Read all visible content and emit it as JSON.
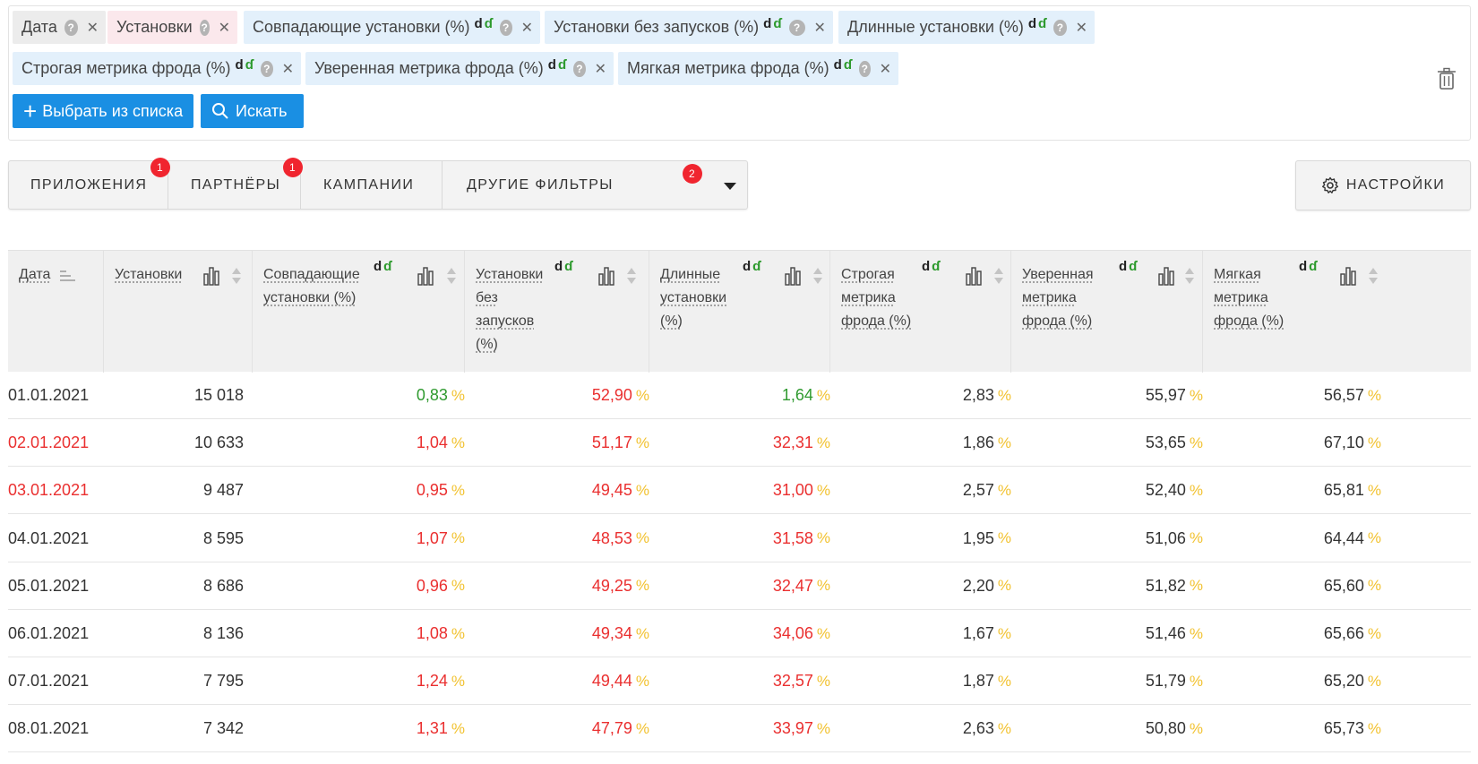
{
  "chips": [
    {
      "label": "Дата",
      "style": "gray",
      "dd": false
    },
    {
      "label": "Установки",
      "style": "pink",
      "dd": false
    },
    {
      "label": "Совпадающие установки (%)",
      "style": "blue",
      "dd": true
    },
    {
      "label": "Установки без запусков (%)",
      "style": "blue",
      "dd": true
    },
    {
      "label": "Длинные установки (%)",
      "style": "blue",
      "dd": true
    },
    {
      "label": "Строгая метрика фрода (%)",
      "style": "blue",
      "dd": true
    },
    {
      "label": "Уверенная метрика фрода (%)",
      "style": "blue",
      "dd": true
    },
    {
      "label": "Мягкая метрика фрода (%)",
      "style": "blue",
      "dd": true
    }
  ],
  "chip_help": "?",
  "chip_remove": "✕",
  "dd_mark_a": "d",
  "dd_mark_b": "ɗ",
  "buttons": {
    "select_from_list": "Выбрать из списка",
    "search": "Искать"
  },
  "filter_tabs": [
    {
      "label": "ПРИЛОЖЕНИЯ",
      "badge": "1"
    },
    {
      "label": "ПАРТНЁРЫ",
      "badge": "1"
    },
    {
      "label": "КАМПАНИИ",
      "badge": ""
    },
    {
      "label": "ДРУГИЕ ФИЛЬТРЫ",
      "badge": "2"
    }
  ],
  "settings_label": "НАСТРОЙКИ",
  "columns": [
    {
      "label": "Дата"
    },
    {
      "label": "Установки"
    },
    {
      "label": "Совпадающие установки (%)"
    },
    {
      "label": "Установки без запусков (%)"
    },
    {
      "label": "Длинные установки (%)"
    },
    {
      "label": "Строгая метрика фрода (%)"
    },
    {
      "label": "Уверенная метрика фрода (%)"
    },
    {
      "label": "Мягкая метрика фрода (%)"
    }
  ],
  "percent_sign": "%",
  "colors": {
    "red": "#ea2f2f",
    "green": "#2f9a2f",
    "dark": "#333333",
    "accent_blue": "#1a8fe3",
    "percent_yellow": "#f2c230",
    "badge_red": "#f0252f"
  },
  "rows": [
    {
      "date": "01.01.2021",
      "date_color": "dark",
      "installs": "15 018",
      "vals": [
        [
          "0,83",
          "green"
        ],
        [
          "52,90",
          "red"
        ],
        [
          "1,64",
          "green"
        ],
        [
          "2,83",
          "dark"
        ],
        [
          "55,97",
          "dark"
        ],
        [
          "56,57",
          "dark"
        ]
      ]
    },
    {
      "date": "02.01.2021",
      "date_color": "red",
      "installs": "10 633",
      "vals": [
        [
          "1,04",
          "red"
        ],
        [
          "51,17",
          "red"
        ],
        [
          "32,31",
          "red"
        ],
        [
          "1,86",
          "dark"
        ],
        [
          "53,65",
          "dark"
        ],
        [
          "67,10",
          "dark"
        ]
      ]
    },
    {
      "date": "03.01.2021",
      "date_color": "red",
      "installs": "9 487",
      "vals": [
        [
          "0,95",
          "red"
        ],
        [
          "49,45",
          "red"
        ],
        [
          "31,00",
          "red"
        ],
        [
          "2,57",
          "dark"
        ],
        [
          "52,40",
          "dark"
        ],
        [
          "65,81",
          "dark"
        ]
      ]
    },
    {
      "date": "04.01.2021",
      "date_color": "dark",
      "installs": "8 595",
      "vals": [
        [
          "1,07",
          "red"
        ],
        [
          "48,53",
          "red"
        ],
        [
          "31,58",
          "red"
        ],
        [
          "1,95",
          "dark"
        ],
        [
          "51,06",
          "dark"
        ],
        [
          "64,44",
          "dark"
        ]
      ]
    },
    {
      "date": "05.01.2021",
      "date_color": "dark",
      "installs": "8 686",
      "vals": [
        [
          "0,96",
          "red"
        ],
        [
          "49,25",
          "red"
        ],
        [
          "32,47",
          "red"
        ],
        [
          "2,20",
          "dark"
        ],
        [
          "51,82",
          "dark"
        ],
        [
          "65,60",
          "dark"
        ]
      ]
    },
    {
      "date": "06.01.2021",
      "date_color": "dark",
      "installs": "8 136",
      "vals": [
        [
          "1,08",
          "red"
        ],
        [
          "49,34",
          "red"
        ],
        [
          "34,06",
          "red"
        ],
        [
          "1,67",
          "dark"
        ],
        [
          "51,46",
          "dark"
        ],
        [
          "65,66",
          "dark"
        ]
      ]
    },
    {
      "date": "07.01.2021",
      "date_color": "dark",
      "installs": "7 795",
      "vals": [
        [
          "1,24",
          "red"
        ],
        [
          "49,44",
          "red"
        ],
        [
          "32,57",
          "red"
        ],
        [
          "1,87",
          "dark"
        ],
        [
          "51,79",
          "dark"
        ],
        [
          "65,20",
          "dark"
        ]
      ]
    },
    {
      "date": "08.01.2021",
      "date_color": "dark",
      "installs": "7 342",
      "vals": [
        [
          "1,31",
          "red"
        ],
        [
          "47,79",
          "red"
        ],
        [
          "33,97",
          "red"
        ],
        [
          "2,63",
          "dark"
        ],
        [
          "50,80",
          "dark"
        ],
        [
          "65,73",
          "dark"
        ]
      ]
    }
  ]
}
